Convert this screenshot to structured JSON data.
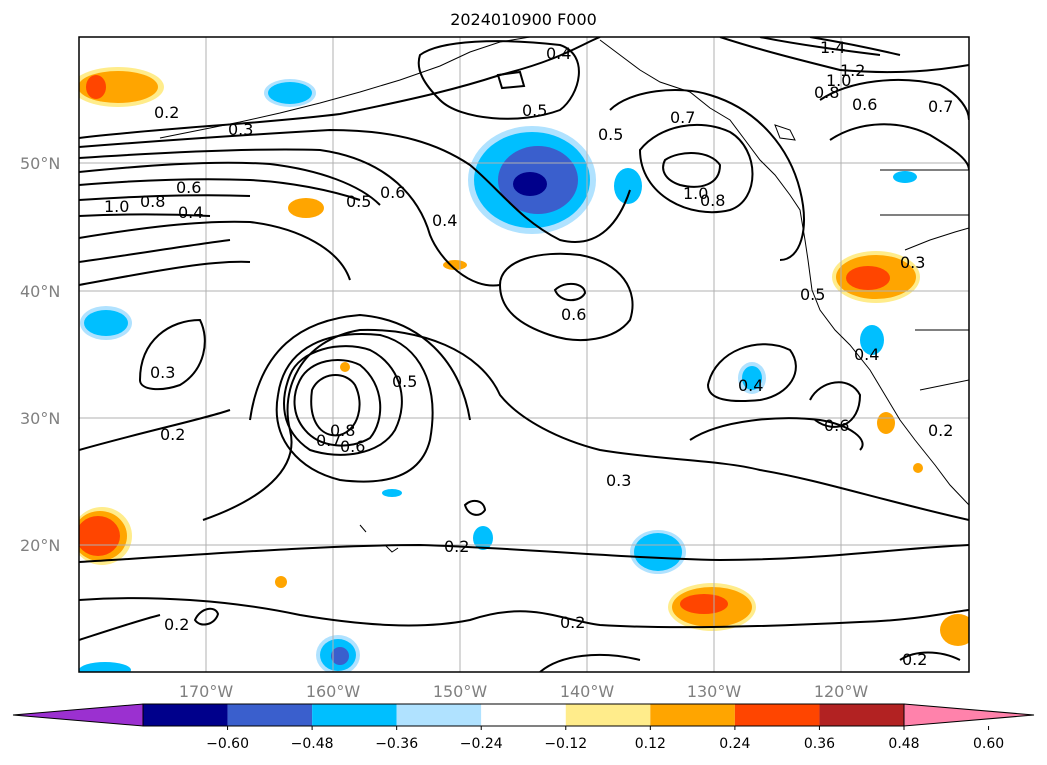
{
  "title": "2024010900 F000",
  "lat_labels": [
    "50°N",
    "40°N",
    "30°N",
    "20°N"
  ],
  "lon_labels": [
    "170°W",
    "160°W",
    "150°W",
    "140°W",
    "130°W",
    "120°W"
  ],
  "colorbar": {
    "ticks": [
      "−0.60",
      "−0.48",
      "−0.36",
      "−0.24",
      "−0.12",
      "0.12",
      "0.24",
      "0.36",
      "0.48",
      "0.60"
    ],
    "colors": [
      "#9b30d0",
      "#00008b",
      "#3a5fcd",
      "#00bfff",
      "#b0e2ff",
      "#ffffff",
      "#ffec8b",
      "#ffa500",
      "#ff4500",
      "#b22222",
      "#ff82ab"
    ]
  },
  "contour_labels": [
    "0.2",
    "0.3",
    "0.4",
    "0.5",
    "0.6",
    "0.7",
    "0.8",
    "1.0",
    "1.2",
    "1.4"
  ]
}
